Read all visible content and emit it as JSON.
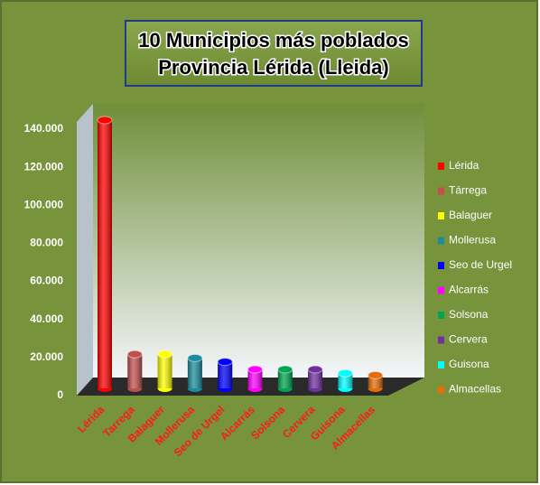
{
  "chart_data": {
    "type": "bar",
    "title": [
      "10 Municipios más poblados",
      "Provincia Lérida (Lleida)"
    ],
    "categories": [
      "Lérida",
      "Tárrega",
      "Balaguer",
      "Mollerusa",
      "Seo de Urgel",
      "Alcarrás",
      "Solsona",
      "Cervera",
      "Guisona",
      "Almacellas"
    ],
    "x_labels": [
      "Lérida",
      "Tarrega",
      "Balaguer",
      "Mollerusa",
      "Seo de Urgel",
      "Alcarrás",
      "Solsona",
      "Cervera",
      "Guisona",
      "Almacellas"
    ],
    "values": [
      140000,
      17000,
      17000,
      15000,
      13000,
      9000,
      9000,
      9000,
      7000,
      6000
    ],
    "colors": [
      "#ff0000",
      "#c0504d",
      "#ffff00",
      "#1a8c9c",
      "#0000ff",
      "#ff00ff",
      "#00a550",
      "#7030a0",
      "#00ffff",
      "#e46c0a"
    ],
    "ylim": [
      0,
      140000
    ],
    "yticks": [
      0,
      {
        "value": 20000,
        "label": "20.000"
      },
      {
        "value": 40000,
        "label": "40.000"
      },
      {
        "value": 60000,
        "label": "60.000"
      },
      {
        "value": 80000,
        "label": "80.000"
      },
      {
        "value": 100000,
        "label": "100.000"
      },
      {
        "value": 120000,
        "label": "120.000"
      },
      {
        "value": 140000,
        "label": "140.000"
      }
    ],
    "legend": "right"
  }
}
